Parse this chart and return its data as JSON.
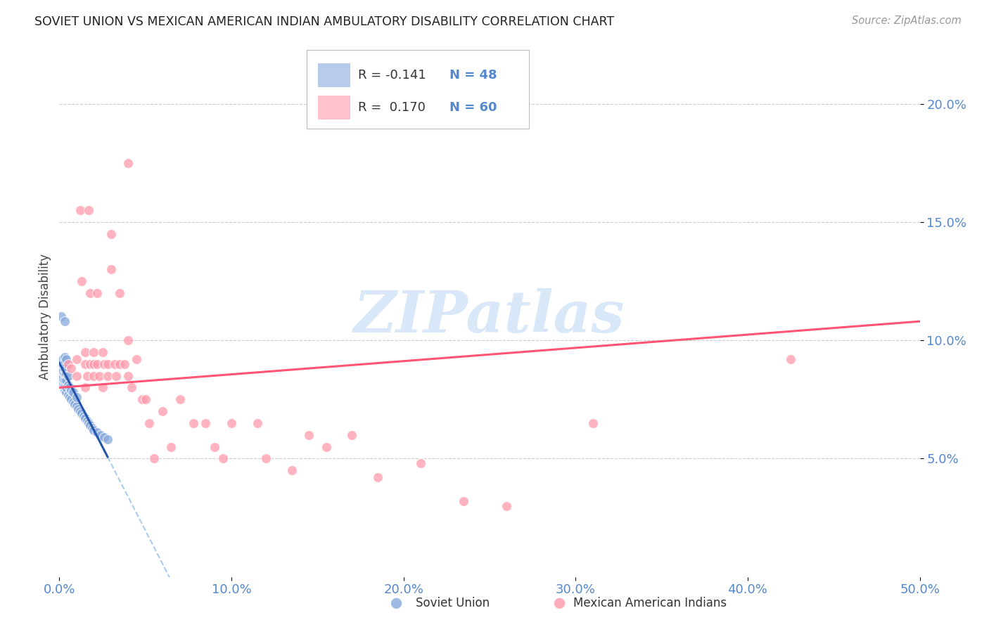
{
  "title": "SOVIET UNION VS MEXICAN AMERICAN INDIAN AMBULATORY DISABILITY CORRELATION CHART",
  "source": "Source: ZipAtlas.com",
  "ylabel": "Ambulatory Disability",
  "xlim": [
    0.0,
    0.5
  ],
  "ylim": [
    0.0,
    0.22
  ],
  "x_ticks": [
    0.0,
    0.1,
    0.2,
    0.3,
    0.4,
    0.5
  ],
  "x_tick_labels": [
    "0.0%",
    "10.0%",
    "20.0%",
    "30.0%",
    "40.0%",
    "50.0%"
  ],
  "y_ticks": [
    0.05,
    0.1,
    0.15,
    0.2
  ],
  "y_tick_labels": [
    "5.0%",
    "10.0%",
    "15.0%",
    "20.0%"
  ],
  "legend_r1": "R = -0.141",
  "legend_n1": "N = 48",
  "legend_r2": "R =  0.170",
  "legend_n2": "N = 60",
  "blue_color": "#88AADD",
  "blue_edge": "#88AADD",
  "pink_color": "#FF99AA",
  "pink_edge": "#FF99AA",
  "blue_line_color": "#2255AA",
  "pink_line_color": "#FF5577",
  "blue_dash_color": "#AACCEE",
  "grid_color": "#CCCCCC",
  "title_color": "#222222",
  "source_color": "#999999",
  "tick_color": "#5588CC",
  "watermark_color": "#D8E8F8",
  "watermark": "ZIPatlas",
  "soviet_x": [
    0.001,
    0.001,
    0.002,
    0.002,
    0.002,
    0.002,
    0.002,
    0.003,
    0.003,
    0.003,
    0.003,
    0.003,
    0.003,
    0.003,
    0.004,
    0.004,
    0.004,
    0.004,
    0.004,
    0.004,
    0.005,
    0.005,
    0.005,
    0.006,
    0.006,
    0.007,
    0.007,
    0.008,
    0.008,
    0.009,
    0.01,
    0.01,
    0.011,
    0.012,
    0.013,
    0.014,
    0.015,
    0.016,
    0.017,
    0.018,
    0.019,
    0.02,
    0.022,
    0.024,
    0.026,
    0.028,
    0.001,
    0.003
  ],
  "soviet_y": [
    0.089,
    0.091,
    0.082,
    0.084,
    0.087,
    0.09,
    0.092,
    0.079,
    0.081,
    0.083,
    0.086,
    0.088,
    0.091,
    0.093,
    0.078,
    0.08,
    0.083,
    0.086,
    0.089,
    0.092,
    0.077,
    0.081,
    0.085,
    0.076,
    0.08,
    0.075,
    0.079,
    0.074,
    0.078,
    0.073,
    0.072,
    0.076,
    0.071,
    0.07,
    0.069,
    0.068,
    0.067,
    0.066,
    0.065,
    0.064,
    0.063,
    0.062,
    0.061,
    0.06,
    0.059,
    0.058,
    0.11,
    0.108
  ],
  "mexican_x": [
    0.005,
    0.007,
    0.01,
    0.01,
    0.012,
    0.013,
    0.015,
    0.015,
    0.015,
    0.016,
    0.017,
    0.018,
    0.018,
    0.02,
    0.02,
    0.02,
    0.022,
    0.022,
    0.023,
    0.025,
    0.025,
    0.026,
    0.028,
    0.028,
    0.03,
    0.03,
    0.032,
    0.033,
    0.035,
    0.035,
    0.038,
    0.04,
    0.04,
    0.042,
    0.045,
    0.048,
    0.05,
    0.052,
    0.055,
    0.06,
    0.065,
    0.07,
    0.078,
    0.085,
    0.09,
    0.095,
    0.1,
    0.115,
    0.12,
    0.135,
    0.145,
    0.155,
    0.17,
    0.185,
    0.21,
    0.235,
    0.26,
    0.31,
    0.425,
    0.04
  ],
  "mexican_y": [
    0.09,
    0.088,
    0.085,
    0.092,
    0.155,
    0.125,
    0.095,
    0.08,
    0.09,
    0.085,
    0.155,
    0.09,
    0.12,
    0.09,
    0.085,
    0.095,
    0.09,
    0.12,
    0.085,
    0.08,
    0.095,
    0.09,
    0.09,
    0.085,
    0.13,
    0.145,
    0.09,
    0.085,
    0.12,
    0.09,
    0.09,
    0.085,
    0.1,
    0.08,
    0.092,
    0.075,
    0.075,
    0.065,
    0.05,
    0.07,
    0.055,
    0.075,
    0.065,
    0.065,
    0.055,
    0.05,
    0.065,
    0.065,
    0.05,
    0.045,
    0.06,
    0.055,
    0.06,
    0.042,
    0.048,
    0.032,
    0.03,
    0.065,
    0.092,
    0.175
  ]
}
